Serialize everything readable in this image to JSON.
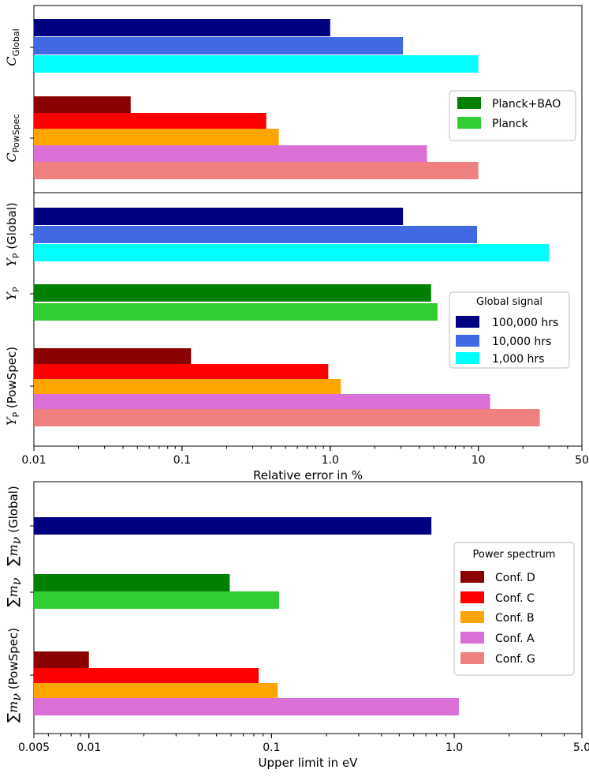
{
  "chart_data": [
    {
      "type": "bar",
      "orientation": "horizontal",
      "panel": "C",
      "xscale": "log",
      "xlim": [
        0.01,
        50
      ],
      "groups": [
        {
          "name": "C_Global",
          "label_parts": [
            "C",
            "Global"
          ],
          "bars": [
            {
              "series": "100,000 hrs",
              "value": 1.0
            },
            {
              "series": "10,000 hrs",
              "value": 3.1
            },
            {
              "series": "1,000 hrs",
              "value": 10.0
            }
          ]
        },
        {
          "name": "C_PowSpec",
          "label_parts": [
            "C",
            "PowSpec"
          ],
          "bars": [
            {
              "series": "Conf. D",
              "value": 0.045
            },
            {
              "series": "Conf. C",
              "value": 0.37
            },
            {
              "series": "Conf. B",
              "value": 0.45
            },
            {
              "series": "Conf. A",
              "value": 4.5
            },
            {
              "series": "Conf. G",
              "value": 10.0
            }
          ]
        }
      ],
      "legend": {
        "location": "right",
        "entries": [
          {
            "label": "Planck+BAO",
            "color": "#008000"
          },
          {
            "label": "Planck",
            "color": "#32cd32"
          }
        ]
      }
    },
    {
      "type": "bar",
      "orientation": "horizontal",
      "panel": "Y_P",
      "xscale": "log",
      "xlim": [
        0.01,
        50
      ],
      "xticks": [
        "0.01",
        "0.1",
        "1.0",
        "10",
        "50"
      ],
      "xlabel": "Relative error in %",
      "groups": [
        {
          "name": "Y_P (Global)",
          "label_parts": [
            "Y",
            "P",
            " (Global)"
          ],
          "bars": [
            {
              "series": "100,000 hrs",
              "value": 3.1
            },
            {
              "series": "10,000 hrs",
              "value": 9.8
            },
            {
              "series": "1,000 hrs",
              "value": 30.0
            }
          ]
        },
        {
          "name": "Y_P",
          "label_parts": [
            "Y",
            "P",
            ""
          ],
          "bars": [
            {
              "series": "Planck+BAO",
              "value": 4.8
            },
            {
              "series": "Planck",
              "value": 5.3
            }
          ]
        },
        {
          "name": "Y_P (PowSpec)",
          "label_parts": [
            "Y",
            "P",
            " (PowSpec)"
          ],
          "bars": [
            {
              "series": "Conf. D",
              "value": 0.115
            },
            {
              "series": "Conf. C",
              "value": 0.97
            },
            {
              "series": "Conf. B",
              "value": 1.18
            },
            {
              "series": "Conf. A",
              "value": 12.0
            },
            {
              "series": "Conf. G",
              "value": 26.0
            }
          ]
        }
      ],
      "legend": {
        "title": "Global signal",
        "location": "right",
        "entries": [
          {
            "label": "100,000 hrs",
            "color": "#000080"
          },
          {
            "label": "10,000 hrs",
            "color": "#4169e1"
          },
          {
            "label": "1,000 hrs",
            "color": "#00ffff"
          }
        ]
      }
    },
    {
      "type": "bar",
      "orientation": "horizontal",
      "panel": "sum_m_nu",
      "xscale": "log",
      "xlim": [
        0.005,
        5.0
      ],
      "xticks": [
        "0.005",
        "0.01",
        "0.1",
        "1.0",
        "5.0"
      ],
      "xlabel": "Upper limit in eV",
      "groups": [
        {
          "name": "sum m_nu (Global)",
          "label_parts": [
            "∑",
            "m",
            "ν",
            " (Global)"
          ],
          "bars": [
            {
              "series": "100,000 hrs",
              "value": 0.75
            }
          ]
        },
        {
          "name": "sum m_nu",
          "label_parts": [
            "∑",
            "m",
            "ν",
            ""
          ],
          "bars": [
            {
              "series": "Planck+BAO",
              "value": 0.059
            },
            {
              "series": "Planck",
              "value": 0.11
            }
          ]
        },
        {
          "name": "sum m_nu (PowSpec)",
          "label_parts": [
            "∑",
            "m",
            "ν",
            " (PowSpec)"
          ],
          "bars": [
            {
              "series": "Conf. D",
              "value": 0.01
            },
            {
              "series": "Conf. C",
              "value": 0.085
            },
            {
              "series": "Conf. B",
              "value": 0.108
            },
            {
              "series": "Conf. A",
              "value": 1.06
            }
          ]
        }
      ],
      "legend": {
        "title": "Power spectrum",
        "location": "right",
        "entries": [
          {
            "label": "Conf. D",
            "color": "#8b0000"
          },
          {
            "label": "Conf. C",
            "color": "#ff0000"
          },
          {
            "label": "Conf. B",
            "color": "#ffa500"
          },
          {
            "label": "Conf. A",
            "color": "#da70d6"
          },
          {
            "label": "Conf. G",
            "color": "#f08080"
          }
        ]
      }
    }
  ],
  "colors": {
    "100,000 hrs": "#000080",
    "10,000 hrs": "#4169e1",
    "1,000 hrs": "#00ffff",
    "Planck+BAO": "#008000",
    "Planck": "#32cd32",
    "Conf. D": "#8b0000",
    "Conf. C": "#ff0000",
    "Conf. B": "#ffa500",
    "Conf. A": "#da70d6",
    "Conf. G": "#f08080"
  }
}
